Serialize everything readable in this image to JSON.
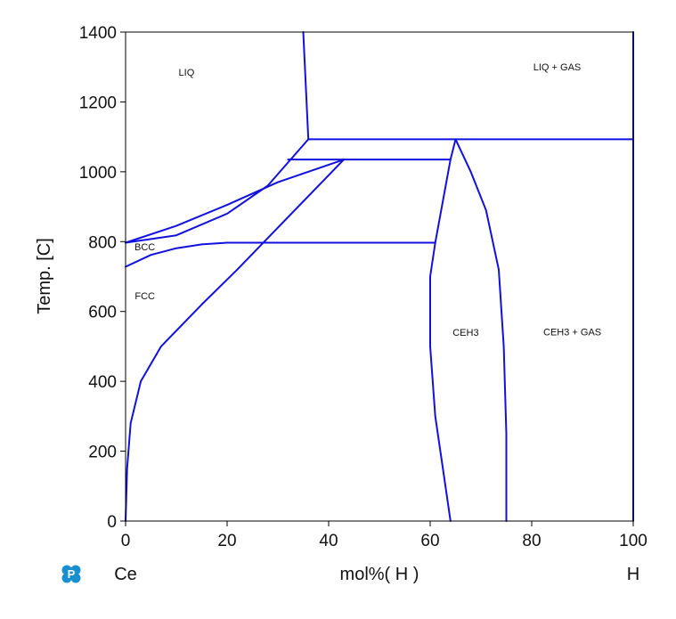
{
  "chart_data": {
    "type": "line",
    "title": "",
    "xlabel": "mol%( H )",
    "ylabel": "Temp. [C]",
    "x_left_label": "Ce",
    "x_right_label": "H",
    "xlim": [
      0,
      100
    ],
    "ylim": [
      0,
      1400
    ],
    "xticks": [
      0,
      20,
      40,
      60,
      80,
      100
    ],
    "yticks": [
      0,
      200,
      400,
      600,
      800,
      1000,
      1200,
      1400
    ],
    "grid": false,
    "line_color": "#1010e0",
    "logo_icon": "p-logo-icon",
    "logo_color": "#1a8fd0",
    "region_labels": [
      {
        "text": "LIQ",
        "x": 12,
        "y": 1275
      },
      {
        "text": "LIQ + GAS",
        "x": 85,
        "y": 1290
      },
      {
        "text": "BCC",
        "x": 3.8,
        "y": 775
      },
      {
        "text": "FCC",
        "x": 3.8,
        "y": 635
      },
      {
        "text": "CEH3",
        "x": 67,
        "y": 530
      },
      {
        "text": "CEH3 + GAS",
        "x": 88,
        "y": 532
      }
    ],
    "series": [
      {
        "values": [
          [
            35,
            1400
          ],
          [
            36,
            1093
          ]
        ]
      },
      {
        "values": [
          [
            36,
            1093
          ],
          [
            100,
            1093
          ]
        ]
      },
      {
        "values": [
          [
            100,
            0
          ],
          [
            100,
            1400
          ]
        ]
      },
      {
        "values": [
          [
            32,
            1035
          ],
          [
            64,
            1035
          ]
        ]
      },
      {
        "values": [
          [
            22,
            797
          ],
          [
            61,
            797
          ]
        ]
      },
      {
        "values": [
          [
            0,
            797
          ],
          [
            10,
            818
          ],
          [
            20,
            880
          ],
          [
            28,
            960
          ],
          [
            36,
            1093
          ]
        ]
      },
      {
        "values": [
          [
            0,
            797
          ],
          [
            10,
            845
          ],
          [
            20,
            905
          ],
          [
            30,
            970
          ],
          [
            43,
            1035
          ]
        ]
      },
      {
        "values": [
          [
            0,
            728
          ],
          [
            5,
            762
          ],
          [
            10,
            781
          ],
          [
            15,
            792
          ],
          [
            20,
            797
          ],
          [
            22,
            797
          ]
        ]
      },
      {
        "values": [
          [
            0,
            0
          ],
          [
            0.3,
            150
          ],
          [
            1,
            280
          ],
          [
            3,
            400
          ],
          [
            7,
            500
          ],
          [
            15,
            620
          ],
          [
            22,
            720
          ],
          [
            30,
            840
          ],
          [
            43,
            1035
          ]
        ]
      },
      {
        "values": [
          [
            65,
            1093
          ],
          [
            64,
            1035
          ],
          [
            61,
            797
          ],
          [
            60,
            700
          ],
          [
            60,
            500
          ],
          [
            61,
            300
          ],
          [
            62.5,
            150
          ],
          [
            64,
            0
          ]
        ]
      },
      {
        "values": [
          [
            65,
            1093
          ],
          [
            68,
            1000
          ],
          [
            71,
            890
          ],
          [
            73.5,
            720
          ],
          [
            74.5,
            500
          ],
          [
            75,
            250
          ],
          [
            75,
            0
          ]
        ]
      }
    ]
  }
}
